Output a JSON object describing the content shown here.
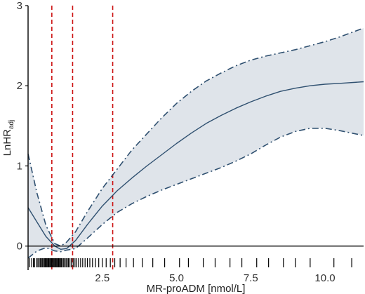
{
  "chart_data": {
    "type": "line",
    "xlabel": "MR-proADM [nmol/L]",
    "ylabel": "LnHR",
    "ylabel_subscript": "adj",
    "xlim": [
      0,
      11.3
    ],
    "ylim": [
      -0.3,
      3.0
    ],
    "x_ticks": [
      2.5,
      5.0,
      7.5,
      10.0
    ],
    "x_tick_labels": [
      "2.5",
      "5.0",
      "7.5",
      "10.0"
    ],
    "y_ticks": [
      0,
      1,
      2,
      3
    ],
    "y_tick_labels": [
      "0",
      "1",
      "2",
      "3"
    ],
    "reference_line_y": 0,
    "vertical_reference_lines_x": [
      0.8,
      1.5,
      2.85
    ],
    "colors": {
      "curve": "#2f5070",
      "band": "#dfe4ea",
      "reference": "#cc1111",
      "rug": "#000000",
      "axis": "#000000"
    },
    "grid": false,
    "series": [
      {
        "role": "estimate",
        "style": "solid",
        "x": [
          0,
          0.3,
          0.6,
          0.9,
          1.1,
          1.3,
          1.6,
          2.0,
          2.5,
          3.0,
          3.5,
          4.0,
          4.5,
          5.0,
          5.5,
          6.0,
          6.5,
          7.0,
          7.5,
          8.0,
          8.5,
          9.0,
          9.5,
          10.0,
          10.5,
          11.3
        ],
        "y": [
          0.48,
          0.3,
          0.12,
          0.0,
          -0.04,
          -0.03,
          0.07,
          0.27,
          0.5,
          0.69,
          0.85,
          1.0,
          1.14,
          1.28,
          1.41,
          1.53,
          1.63,
          1.72,
          1.8,
          1.87,
          1.93,
          1.97,
          2.0,
          2.02,
          2.03,
          2.05
        ]
      },
      {
        "role": "lower_ci",
        "style": "dash-dot",
        "x": [
          0,
          0.3,
          0.6,
          0.9,
          1.1,
          1.3,
          1.6,
          2.0,
          2.5,
          3.0,
          3.5,
          4.0,
          4.5,
          5.0,
          5.5,
          6.0,
          6.5,
          7.0,
          7.5,
          8.0,
          8.5,
          9.0,
          9.5,
          10.0,
          10.5,
          11.3
        ],
        "y": [
          -0.15,
          -0.06,
          -0.02,
          -0.06,
          -0.07,
          -0.05,
          -0.03,
          0.1,
          0.27,
          0.42,
          0.53,
          0.62,
          0.7,
          0.77,
          0.84,
          0.91,
          0.98,
          1.06,
          1.15,
          1.26,
          1.36,
          1.43,
          1.47,
          1.47,
          1.44,
          1.38
        ]
      },
      {
        "role": "upper_ci",
        "style": "dash-dot",
        "x": [
          0,
          0.3,
          0.6,
          0.9,
          1.1,
          1.3,
          1.6,
          2.0,
          2.5,
          3.0,
          3.5,
          4.0,
          4.5,
          5.0,
          5.5,
          6.0,
          6.5,
          7.0,
          7.5,
          8.0,
          8.5,
          9.0,
          9.5,
          10.0,
          10.5,
          11.3
        ],
        "y": [
          1.15,
          0.66,
          0.26,
          0.03,
          0.0,
          0.05,
          0.18,
          0.43,
          0.72,
          0.96,
          1.2,
          1.4,
          1.6,
          1.78,
          1.93,
          2.06,
          2.16,
          2.25,
          2.32,
          2.37,
          2.41,
          2.45,
          2.5,
          2.55,
          2.61,
          2.72
        ]
      }
    ],
    "rug_x": [
      0.05,
      0.12,
      0.18,
      0.22,
      0.28,
      0.33,
      0.37,
      0.41,
      0.45,
      0.48,
      0.52,
      0.55,
      0.58,
      0.61,
      0.64,
      0.67,
      0.7,
      0.73,
      0.76,
      0.79,
      0.82,
      0.85,
      0.88,
      0.91,
      0.94,
      0.97,
      1.0,
      1.03,
      1.06,
      1.09,
      1.12,
      1.16,
      1.2,
      1.24,
      1.28,
      1.32,
      1.36,
      1.41,
      1.46,
      1.52,
      1.58,
      1.64,
      1.7,
      1.77,
      1.84,
      1.92,
      2.0,
      2.08,
      2.17,
      2.27,
      2.38,
      2.5,
      2.63,
      2.77,
      2.92,
      3.1,
      3.3,
      3.55,
      3.85,
      4.2,
      4.6,
      5.1,
      5.4,
      5.9,
      6.3,
      6.8,
      7.2,
      7.7,
      8.1,
      8.6,
      9.0,
      9.5,
      10.3,
      10.9
    ]
  }
}
